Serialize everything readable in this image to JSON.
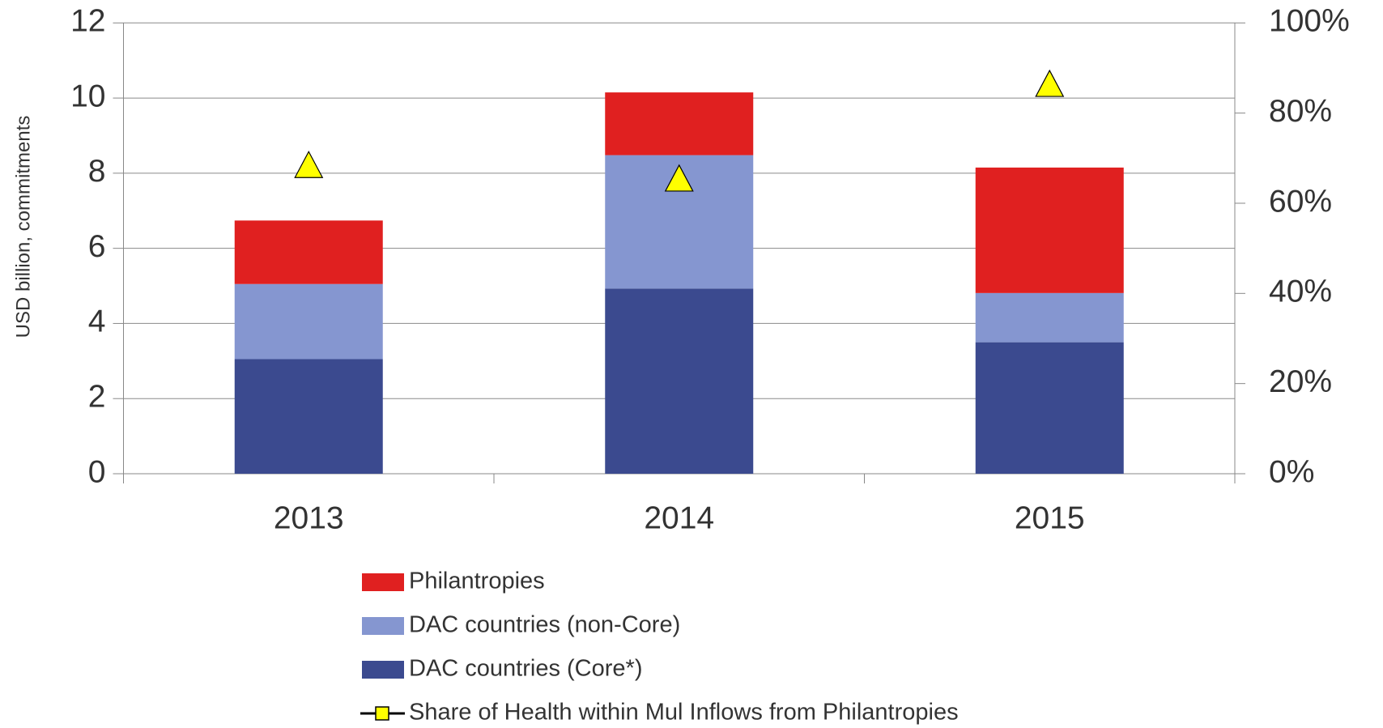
{
  "chart_data": {
    "type": "bar",
    "stacked": true,
    "categories": [
      "2013",
      "2014",
      "2015"
    ],
    "y_label": "USD billion, commitments",
    "ylim": [
      0,
      12
    ],
    "yticks": [
      0,
      2,
      4,
      6,
      8,
      10,
      12
    ],
    "y2lim": [
      0,
      100
    ],
    "y2ticks": [
      {
        "value": 0,
        "label": "0%"
      },
      {
        "value": 20,
        "label": "20%"
      },
      {
        "value": 40,
        "label": "40%"
      },
      {
        "value": 60,
        "label": "60%"
      },
      {
        "value": 80,
        "label": "80%"
      },
      {
        "value": 100,
        "label": "100%"
      }
    ],
    "grid": true,
    "series": [
      {
        "name": "DAC countries (Core*)",
        "color": "#3b4a8f",
        "values": [
          3.05,
          4.93,
          3.5
        ]
      },
      {
        "name": "DAC countries (non-Core)",
        "color": "#8596d0",
        "values": [
          2.0,
          3.55,
          1.31
        ]
      },
      {
        "name": "Philantropies",
        "color": "#e02020",
        "values": [
          1.69,
          1.67,
          3.34
        ]
      },
      {
        "name": "Share of Health within Mul Inflows from Philantropies",
        "color": "#ffff00",
        "axis": "y2",
        "marker": "triangle",
        "values": [
          68,
          65,
          86
        ]
      }
    ]
  }
}
